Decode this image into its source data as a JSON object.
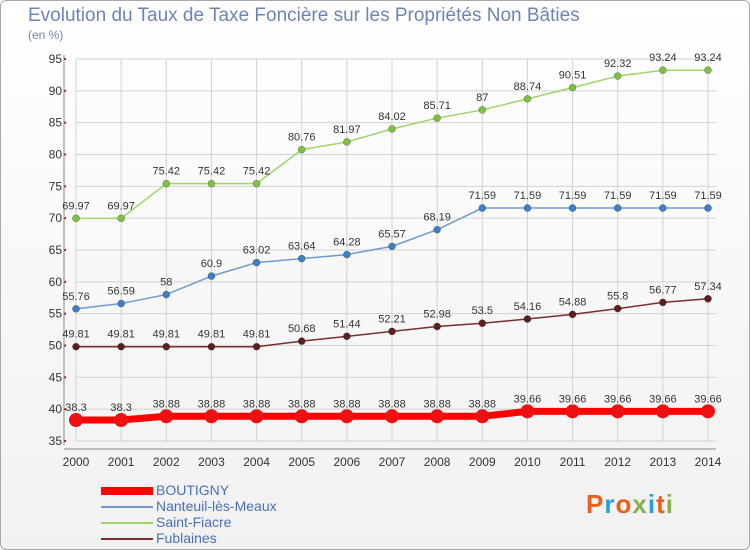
{
  "title": "Evolution du Taux de Taxe Foncière sur les Propriétés Non Bâties",
  "unit_label": "(en %)",
  "logo": {
    "text": "Proxiti",
    "letters": [
      {
        "char": "P",
        "color": "#e8601c"
      },
      {
        "char": "r",
        "color": "#2a9fd6"
      },
      {
        "char": "o",
        "color": "#e8601c"
      },
      {
        "char": "x",
        "color": "#88b04b"
      },
      {
        "char": "i",
        "color": "#2a9fd6"
      },
      {
        "char": "t",
        "color": "#e8601c"
      },
      {
        "char": "i",
        "color": "#88b04b"
      }
    ]
  },
  "chart_data": {
    "type": "line",
    "title": "Evolution du Taux de Taxe Foncière sur les Propriétés Non Bâties",
    "ylabel": "(en %)",
    "xlabel": "",
    "ylim": [
      35,
      95
    ],
    "yticks": [
      35,
      40,
      45,
      50,
      55,
      60,
      65,
      70,
      75,
      80,
      85,
      90,
      95
    ],
    "grid": true,
    "legend_position": "bottom-left",
    "x": [
      "2000",
      "2001",
      "2002",
      "2003",
      "2004",
      "2005",
      "2006",
      "2007",
      "2008",
      "2009",
      "2010",
      "2011",
      "2012",
      "2013",
      "2014"
    ],
    "series": [
      {
        "name": "BOUTIGNY",
        "color": "#ff0000",
        "point_color": "#ee1111",
        "width": 7,
        "radius": 7,
        "values": [
          38.3,
          38.3,
          38.88,
          38.88,
          38.88,
          38.88,
          38.88,
          38.88,
          38.88,
          38.88,
          39.66,
          39.66,
          39.66,
          39.66,
          39.66
        ],
        "labels": [
          "38.3",
          "38.3",
          "38.88",
          "38.88",
          "38.88",
          "38.88",
          "38.88",
          "38.88",
          "38.88",
          "38.88",
          "39.66",
          "39.66",
          "39.66",
          "39.66",
          "39.66"
        ]
      },
      {
        "name": "Nanteuil-lès-Meaux",
        "color": "#6f9ad2",
        "point_color": "#3f7fc6",
        "width": 1.5,
        "radius": 3.5,
        "values": [
          55.76,
          56.59,
          58,
          60.9,
          63.02,
          63.64,
          64.28,
          65.57,
          68.19,
          71.59,
          71.59,
          71.59,
          71.59,
          71.59,
          71.59
        ],
        "labels": [
          "55.76",
          "56.59",
          "58",
          "60.9",
          "63.02",
          "63.64",
          "64.28",
          "65.57",
          "68.19",
          "71.59",
          "71.59",
          "71.59",
          "71.59",
          "71.59",
          "71.59"
        ]
      },
      {
        "name": "Saint-Fiacre",
        "color": "#9ed46a",
        "point_color": "#7dc242",
        "width": 1.5,
        "radius": 3.5,
        "values": [
          69.97,
          69.97,
          75.42,
          75.42,
          75.42,
          80.76,
          81.97,
          84.02,
          85.71,
          87,
          88.74,
          90.51,
          92.32,
          93.24,
          93.24
        ],
        "labels": [
          "69.97",
          "69.97",
          "75.42",
          "75.42",
          "75.42",
          "80.76",
          "81.97",
          "84.02",
          "85.71",
          "87",
          "88.74",
          "90.51",
          "92.32",
          "93.24",
          "93.24"
        ]
      },
      {
        "name": "Fublaines",
        "color": "#7b2f2f",
        "point_color": "#5c1f1f",
        "width": 1.5,
        "radius": 3.5,
        "values": [
          49.81,
          49.81,
          49.81,
          49.81,
          49.81,
          50.68,
          51.44,
          52.21,
          52.98,
          53.5,
          54.16,
          54.88,
          55.8,
          56.77,
          57.34
        ],
        "labels": [
          "49.81",
          "49.81",
          "49.81",
          "49.81",
          "49.81",
          "50.68",
          "51.44",
          "52.21",
          "52.98",
          "53.5",
          "54.16",
          "54.88",
          "55.8",
          "56.77",
          "57.34"
        ]
      }
    ]
  }
}
